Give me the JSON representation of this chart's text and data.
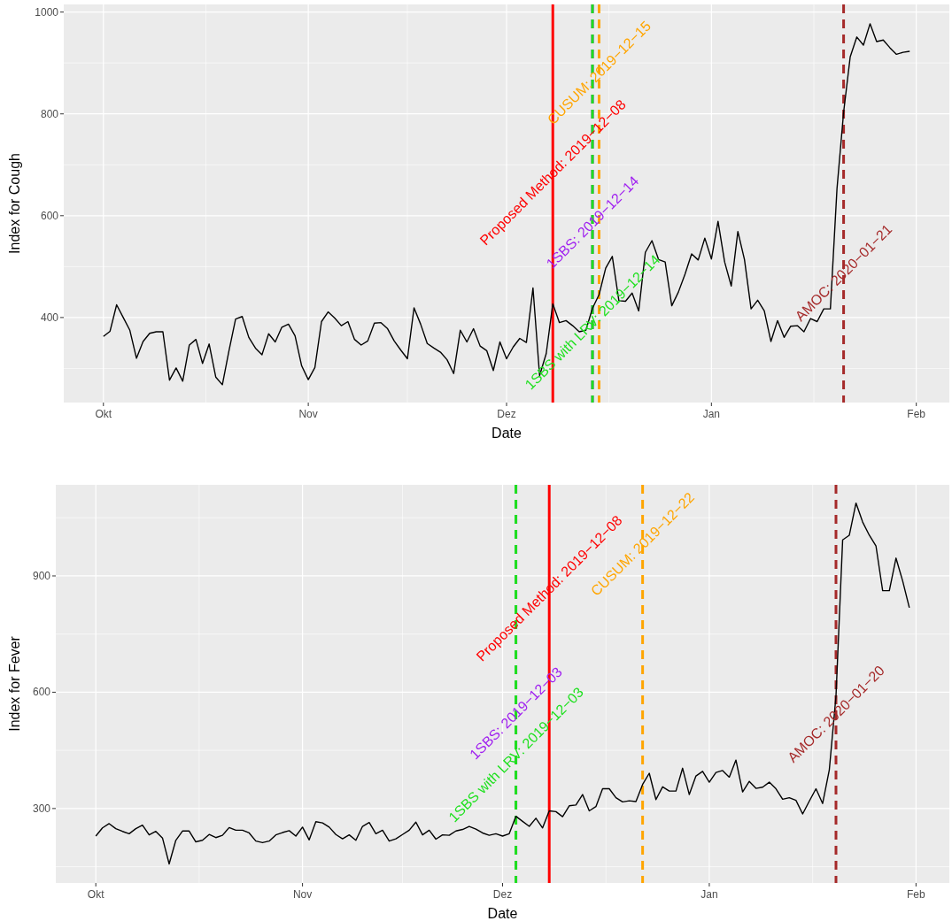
{
  "chart_data": [
    {
      "type": "line",
      "xlabel": "Date",
      "ylabel": "Index for Cough",
      "grid": true,
      "x": [
        "2019-10-01",
        "2019-10-02",
        "2019-10-03",
        "2019-10-04",
        "2019-10-05",
        "2019-10-06",
        "2019-10-07",
        "2019-10-08",
        "2019-10-09",
        "2019-10-10",
        "2019-10-11",
        "2019-10-12",
        "2019-10-13",
        "2019-10-14",
        "2019-10-15",
        "2019-10-16",
        "2019-10-17",
        "2019-10-18",
        "2019-10-19",
        "2019-10-20",
        "2019-10-21",
        "2019-10-22",
        "2019-10-23",
        "2019-10-24",
        "2019-10-25",
        "2019-10-26",
        "2019-10-27",
        "2019-10-28",
        "2019-10-29",
        "2019-10-30",
        "2019-10-31",
        "2019-11-01",
        "2019-11-02",
        "2019-11-03",
        "2019-11-04",
        "2019-11-05",
        "2019-11-06",
        "2019-11-07",
        "2019-11-08",
        "2019-11-09",
        "2019-11-10",
        "2019-11-11",
        "2019-11-12",
        "2019-11-13",
        "2019-11-14",
        "2019-11-15",
        "2019-11-16",
        "2019-11-17",
        "2019-11-18",
        "2019-11-19",
        "2019-11-20",
        "2019-11-21",
        "2019-11-22",
        "2019-11-23",
        "2019-11-24",
        "2019-11-25",
        "2019-11-26",
        "2019-11-27",
        "2019-11-28",
        "2019-11-29",
        "2019-11-30",
        "2019-12-01",
        "2019-12-02",
        "2019-12-03",
        "2019-12-04",
        "2019-12-05",
        "2019-12-06",
        "2019-12-07",
        "2019-12-08",
        "2019-12-09",
        "2019-12-10",
        "2019-12-11",
        "2019-12-12",
        "2019-12-13",
        "2019-12-14",
        "2019-12-15",
        "2019-12-16",
        "2019-12-17",
        "2019-12-18",
        "2019-12-19",
        "2019-12-20",
        "2019-12-21",
        "2019-12-22",
        "2019-12-23",
        "2019-12-24",
        "2019-12-25",
        "2019-12-26",
        "2019-12-27",
        "2019-12-28",
        "2019-12-29",
        "2019-12-30",
        "2019-12-31",
        "2020-01-01",
        "2020-01-02",
        "2020-01-03",
        "2020-01-04",
        "2020-01-05",
        "2020-01-06",
        "2020-01-07",
        "2020-01-08",
        "2020-01-09",
        "2020-01-10",
        "2020-01-11",
        "2020-01-12",
        "2020-01-13",
        "2020-01-14",
        "2020-01-15",
        "2020-01-16",
        "2020-01-17",
        "2020-01-18",
        "2020-01-19",
        "2020-01-20",
        "2020-01-21",
        "2020-01-22",
        "2020-01-23",
        "2020-01-24",
        "2020-01-25",
        "2020-01-26",
        "2020-01-27",
        "2020-01-28",
        "2020-01-29",
        "2020-01-30",
        "2020-01-31"
      ],
      "series": [
        {
          "color": "#000000",
          "values": [
            363,
            373,
            425,
            400,
            375,
            320,
            353,
            369,
            372,
            372,
            277,
            301,
            275,
            346,
            357,
            310,
            348,
            283,
            268,
            335,
            397,
            402,
            361,
            340,
            327,
            368,
            352,
            381,
            387,
            364,
            305,
            278,
            302,
            392,
            411,
            399,
            384,
            392,
            357,
            346,
            354,
            389,
            390,
            378,
            354,
            336,
            319,
            419,
            387,
            349,
            340,
            332,
            317,
            290,
            375,
            352,
            378,
            344,
            335,
            296,
            352,
            319,
            342,
            359,
            351,
            458,
            286,
            329,
            427,
            390,
            394,
            384,
            372,
            375,
            418,
            445,
            497,
            520,
            433,
            432,
            448,
            413,
            528,
            551,
            514,
            509,
            423,
            450,
            485,
            525,
            513,
            556,
            515,
            589,
            509,
            462,
            569,
            514,
            417,
            434,
            413,
            353,
            394,
            361,
            383,
            384,
            372,
            398,
            392,
            417,
            417,
            653,
            803,
            912,
            951,
            935,
            977,
            942,
            945,
            930,
            917,
            921,
            923
          ]
        }
      ],
      "xlim": [
        "2019-09-25",
        "2020-02-06"
      ],
      "xticks": [
        {
          "value": "2019-10-01",
          "label": "Okt"
        },
        {
          "value": "2019-11-01",
          "label": "Nov"
        },
        {
          "value": "2019-12-01",
          "label": "Dez"
        },
        {
          "value": "2020-01-01",
          "label": "Jan"
        },
        {
          "value": "2020-02-01",
          "label": "Feb"
        }
      ],
      "ylim": [
        233,
        1015
      ],
      "yticks": [
        400,
        600,
        800,
        1000
      ],
      "ref_lines": [
        {
          "axis": "x",
          "value": "2019-12-08",
          "color": "#ff0000",
          "line_style": "solid"
        },
        {
          "axis": "x",
          "value": "2019-12-15",
          "color": "#ffa500",
          "line_style": "dashed"
        },
        {
          "axis": "x",
          "value": "2019-12-14",
          "color": "#a020f0",
          "line_style": "dashed"
        },
        {
          "axis": "x",
          "value": "2019-12-14",
          "color": "#1ee01e",
          "line_style": "dashed"
        },
        {
          "axis": "x",
          "value": "2020-01-21",
          "color": "#a52a2a",
          "line_style": "dashed"
        }
      ],
      "annotations": [
        {
          "text": "Proposed Method: 2019−12−08",
          "x": "2019-12-08",
          "y": 685
        },
        {
          "text": "CUSUM: 2019−12−15",
          "x": "2019-12-15",
          "y": 881
        },
        {
          "text": "1SBS: 2019−12−14",
          "x": "2019-12-14",
          "y": 587
        },
        {
          "text": "1SBS with LRV: 2019−12−14",
          "x": "2019-12-14",
          "y": 391
        },
        {
          "text": "AMOC: 2020−01−21",
          "x": "2020-01-21",
          "y": 488
        }
      ]
    },
    {
      "type": "line",
      "xlabel": "Date",
      "ylabel": "Index for Fever",
      "grid": true,
      "x": [
        "2019-10-01",
        "2019-10-02",
        "2019-10-03",
        "2019-10-04",
        "2019-10-05",
        "2019-10-06",
        "2019-10-07",
        "2019-10-08",
        "2019-10-09",
        "2019-10-10",
        "2019-10-11",
        "2019-10-12",
        "2019-10-13",
        "2019-10-14",
        "2019-10-15",
        "2019-10-16",
        "2019-10-17",
        "2019-10-18",
        "2019-10-19",
        "2019-10-20",
        "2019-10-21",
        "2019-10-22",
        "2019-10-23",
        "2019-10-24",
        "2019-10-25",
        "2019-10-26",
        "2019-10-27",
        "2019-10-28",
        "2019-10-29",
        "2019-10-30",
        "2019-10-31",
        "2019-11-01",
        "2019-11-02",
        "2019-11-03",
        "2019-11-04",
        "2019-11-05",
        "2019-11-06",
        "2019-11-07",
        "2019-11-08",
        "2019-11-09",
        "2019-11-10",
        "2019-11-11",
        "2019-11-12",
        "2019-11-13",
        "2019-11-14",
        "2019-11-15",
        "2019-11-16",
        "2019-11-17",
        "2019-11-18",
        "2019-11-19",
        "2019-11-20",
        "2019-11-21",
        "2019-11-22",
        "2019-11-23",
        "2019-11-24",
        "2019-11-25",
        "2019-11-26",
        "2019-11-27",
        "2019-11-28",
        "2019-11-29",
        "2019-11-30",
        "2019-12-01",
        "2019-12-02",
        "2019-12-03",
        "2019-12-04",
        "2019-12-05",
        "2019-12-06",
        "2019-12-07",
        "2019-12-08",
        "2019-12-09",
        "2019-12-10",
        "2019-12-11",
        "2019-12-12",
        "2019-12-13",
        "2019-12-14",
        "2019-12-15",
        "2019-12-16",
        "2019-12-17",
        "2019-12-18",
        "2019-12-19",
        "2019-12-20",
        "2019-12-21",
        "2019-12-22",
        "2019-12-23",
        "2019-12-24",
        "2019-12-25",
        "2019-12-26",
        "2019-12-27",
        "2019-12-28",
        "2019-12-29",
        "2019-12-30",
        "2019-12-31",
        "2020-01-01",
        "2020-01-02",
        "2020-01-03",
        "2020-01-04",
        "2020-01-05",
        "2020-01-06",
        "2020-01-07",
        "2020-01-08",
        "2020-01-09",
        "2020-01-10",
        "2020-01-11",
        "2020-01-12",
        "2020-01-13",
        "2020-01-14",
        "2020-01-15",
        "2020-01-16",
        "2020-01-17",
        "2020-01-18",
        "2020-01-19",
        "2020-01-20",
        "2020-01-21",
        "2020-01-22",
        "2020-01-23",
        "2020-01-24",
        "2020-01-25",
        "2020-01-26",
        "2020-01-27",
        "2020-01-28",
        "2020-01-29",
        "2020-01-30",
        "2020-01-31"
      ],
      "series": [
        {
          "color": "#000000",
          "values": [
            229,
            250,
            261,
            248,
            241,
            235,
            248,
            257,
            232,
            241,
            224,
            157,
            218,
            242,
            242,
            214,
            218,
            233,
            225,
            231,
            251,
            244,
            244,
            237,
            216,
            212,
            216,
            232,
            238,
            243,
            229,
            252,
            219,
            266,
            263,
            252,
            233,
            222,
            232,
            218,
            254,
            264,
            235,
            244,
            216,
            222,
            233,
            244,
            265,
            232,
            244,
            221,
            232,
            231,
            242,
            246,
            254,
            247,
            237,
            231,
            235,
            229,
            235,
            280,
            267,
            254,
            275,
            250,
            294,
            292,
            279,
            307,
            309,
            336,
            294,
            305,
            351,
            351,
            328,
            317,
            320,
            318,
            362,
            391,
            323,
            356,
            345,
            345,
            404,
            336,
            384,
            396,
            368,
            393,
            398,
            381,
            425,
            343,
            370,
            352,
            355,
            368,
            351,
            324,
            328,
            321,
            286,
            319,
            351,
            313,
            400,
            590,
            993,
            1005,
            1088,
            1039,
            1005,
            977,
            862,
            862,
            946,
            887,
            818
          ]
        }
      ],
      "xlim": [
        "2019-09-25",
        "2020-02-06"
      ],
      "xticks": [
        {
          "value": "2019-10-01",
          "label": "Okt"
        },
        {
          "value": "2019-11-01",
          "label": "Nov"
        },
        {
          "value": "2019-12-01",
          "label": "Dez"
        },
        {
          "value": "2020-01-01",
          "label": "Jan"
        },
        {
          "value": "2020-02-01",
          "label": "Feb"
        }
      ],
      "ylim": [
        108,
        1135
      ],
      "yticks": [
        300,
        600,
        900
      ],
      "ref_lines": [
        {
          "axis": "x",
          "value": "2019-12-08",
          "color": "#ff0000",
          "line_style": "solid"
        },
        {
          "axis": "x",
          "value": "2019-12-22",
          "color": "#ffa500",
          "line_style": "dashed"
        },
        {
          "axis": "x",
          "value": "2019-12-03",
          "color": "#a020f0",
          "line_style": "dashed"
        },
        {
          "axis": "x",
          "value": "2019-12-03",
          "color": "#1ee01e",
          "line_style": "dashed"
        },
        {
          "axis": "x",
          "value": "2020-01-20",
          "color": "#a52a2a",
          "line_style": "dashed"
        }
      ],
      "annotations": [
        {
          "text": "Proposed Method: 2019−12−08",
          "x": "2019-12-08",
          "y": 868
        },
        {
          "text": "CUSUM: 2019−12−22",
          "x": "2019-12-22",
          "y": 982
        },
        {
          "text": "1SBS: 2019−12−03",
          "x": "2019-12-03",
          "y": 546
        },
        {
          "text": "1SBS with LRV: 2019−12−03",
          "x": "2019-12-03",
          "y": 439
        },
        {
          "text": "AMOC: 2020−01−20",
          "x": "2020-01-20",
          "y": 544
        }
      ]
    }
  ]
}
